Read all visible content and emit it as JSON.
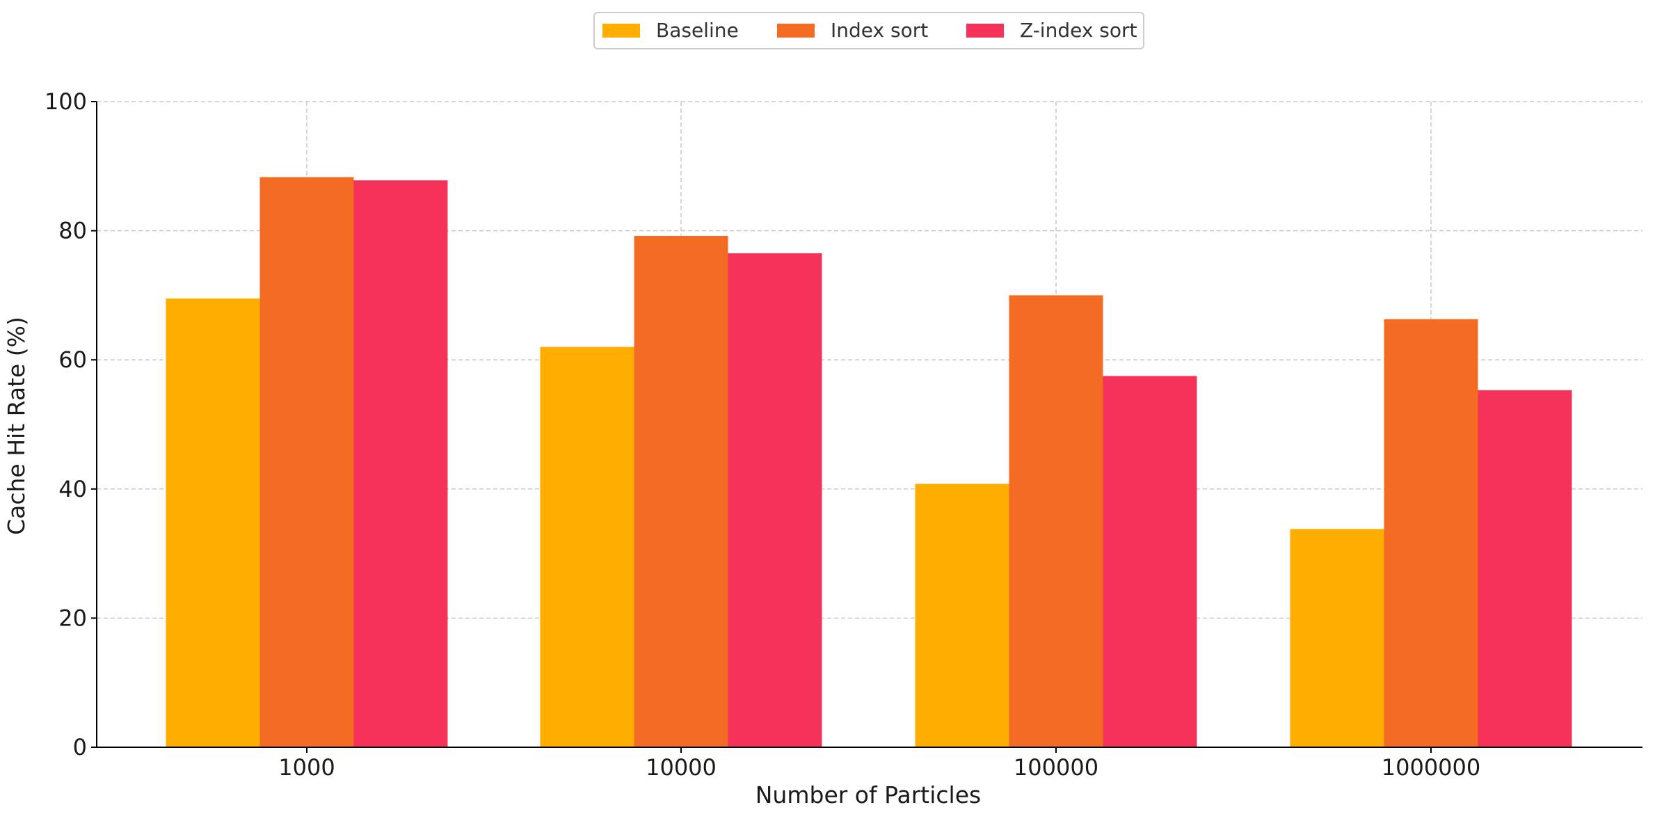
{
  "chart_data": {
    "type": "bar",
    "title": "",
    "xlabel": "Number of Particles",
    "ylabel": "Cache Hit Rate (%)",
    "categories": [
      "1000",
      "10000",
      "100000",
      "1000000"
    ],
    "series": [
      {
        "name": "Baseline",
        "color": "#FFAE00",
        "values": [
          69.5,
          62.0,
          40.8,
          33.8
        ]
      },
      {
        "name": "Index sort",
        "color": "#F46B23",
        "values": [
          88.3,
          79.2,
          70.0,
          66.3
        ]
      },
      {
        "name": "Z-index sort",
        "color": "#F4325A",
        "values": [
          87.8,
          76.5,
          57.5,
          55.3
        ]
      }
    ],
    "ylim": [
      0,
      100
    ],
    "yticks": [
      0,
      20,
      40,
      60,
      80,
      100
    ],
    "grid": true,
    "legend_position": "top-center"
  }
}
